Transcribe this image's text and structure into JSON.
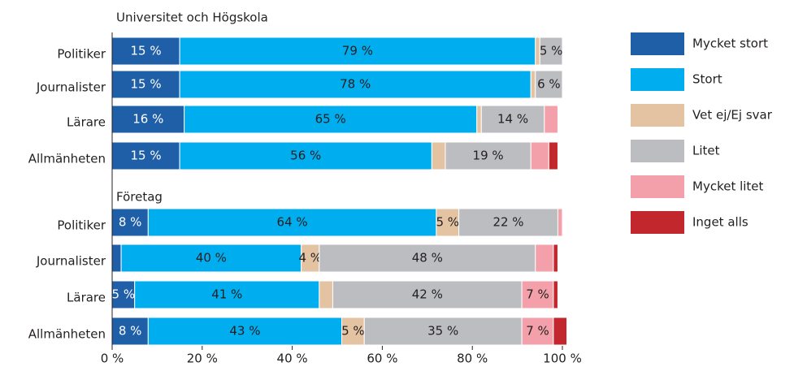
{
  "chart_data": [
    {
      "type": "stacked-bar-horizontal",
      "title": "Universitet och Högskola",
      "categories": [
        "Politiker",
        "Journalister",
        "Lärare",
        "Allmänheten"
      ],
      "xlim": [
        0,
        100
      ],
      "series": [
        {
          "name": "Mycket stort",
          "color": "#1f5fa8",
          "values": [
            15,
            15,
            16,
            15
          ],
          "value_labels": [
            "15 %",
            "15 %",
            "16 %",
            "15 %"
          ]
        },
        {
          "name": "Stort",
          "color": "#00adef",
          "values": [
            79,
            78,
            65,
            56
          ],
          "value_labels": [
            "79 %",
            "78 %",
            "65 %",
            "56 %"
          ]
        },
        {
          "name": "Vet ej/Ej svar",
          "color": "#e3c3a2",
          "values": [
            1,
            1,
            1,
            3
          ],
          "value_labels": [
            null,
            null,
            null,
            null
          ]
        },
        {
          "name": "Litet",
          "color": "#bcbdc0",
          "values": [
            5,
            6,
            14,
            19
          ],
          "value_labels": [
            "5 %",
            "6 %",
            "14 %",
            "19 %"
          ]
        },
        {
          "name": "Mycket litet",
          "color": "#f4a0aa",
          "values": [
            0,
            0,
            3,
            4
          ],
          "value_labels": [
            null,
            null,
            null,
            null
          ]
        },
        {
          "name": "Inget alls",
          "color": "#c1272d",
          "values": [
            0,
            0,
            0,
            2
          ],
          "value_labels": [
            null,
            null,
            null,
            null
          ]
        }
      ]
    },
    {
      "type": "stacked-bar-horizontal",
      "title": "Företag",
      "categories": [
        "Politiker",
        "Journalister",
        "Lärare",
        "Allmänheten"
      ],
      "xlim": [
        0,
        100
      ],
      "xticks": [
        {
          "value": 0,
          "label": "0 %"
        },
        {
          "value": 20,
          "label": "20 %"
        },
        {
          "value": 40,
          "label": "40 %"
        },
        {
          "value": 60,
          "label": "60 %"
        },
        {
          "value": 80,
          "label": "80 %"
        },
        {
          "value": 100,
          "label": "100 %"
        }
      ],
      "series": [
        {
          "name": "Mycket stort",
          "color": "#1f5fa8",
          "values": [
            8,
            2,
            5,
            8
          ],
          "value_labels": [
            "8 %",
            null,
            "5 %",
            "8 %"
          ]
        },
        {
          "name": "Stort",
          "color": "#00adef",
          "values": [
            64,
            40,
            41,
            43
          ],
          "value_labels": [
            "64 %",
            "40 %",
            "41 %",
            "43 %"
          ]
        },
        {
          "name": "Vet ej/Ej svar",
          "color": "#e3c3a2",
          "values": [
            5,
            4,
            3,
            5
          ],
          "value_labels": [
            "5 %",
            "4 %",
            null,
            "5 %"
          ]
        },
        {
          "name": "Litet",
          "color": "#bcbdc0",
          "values": [
            22,
            48,
            42,
            35
          ],
          "value_labels": [
            "22 %",
            "48 %",
            "42 %",
            "35 %"
          ]
        },
        {
          "name": "Mycket litet",
          "color": "#f4a0aa",
          "values": [
            1,
            4,
            7,
            7
          ],
          "value_labels": [
            null,
            null,
            "7 %",
            "7 %"
          ]
        },
        {
          "name": "Inget alls",
          "color": "#c1272d",
          "values": [
            0,
            1,
            1,
            3
          ],
          "value_labels": [
            null,
            null,
            null,
            null
          ]
        }
      ]
    }
  ]
}
